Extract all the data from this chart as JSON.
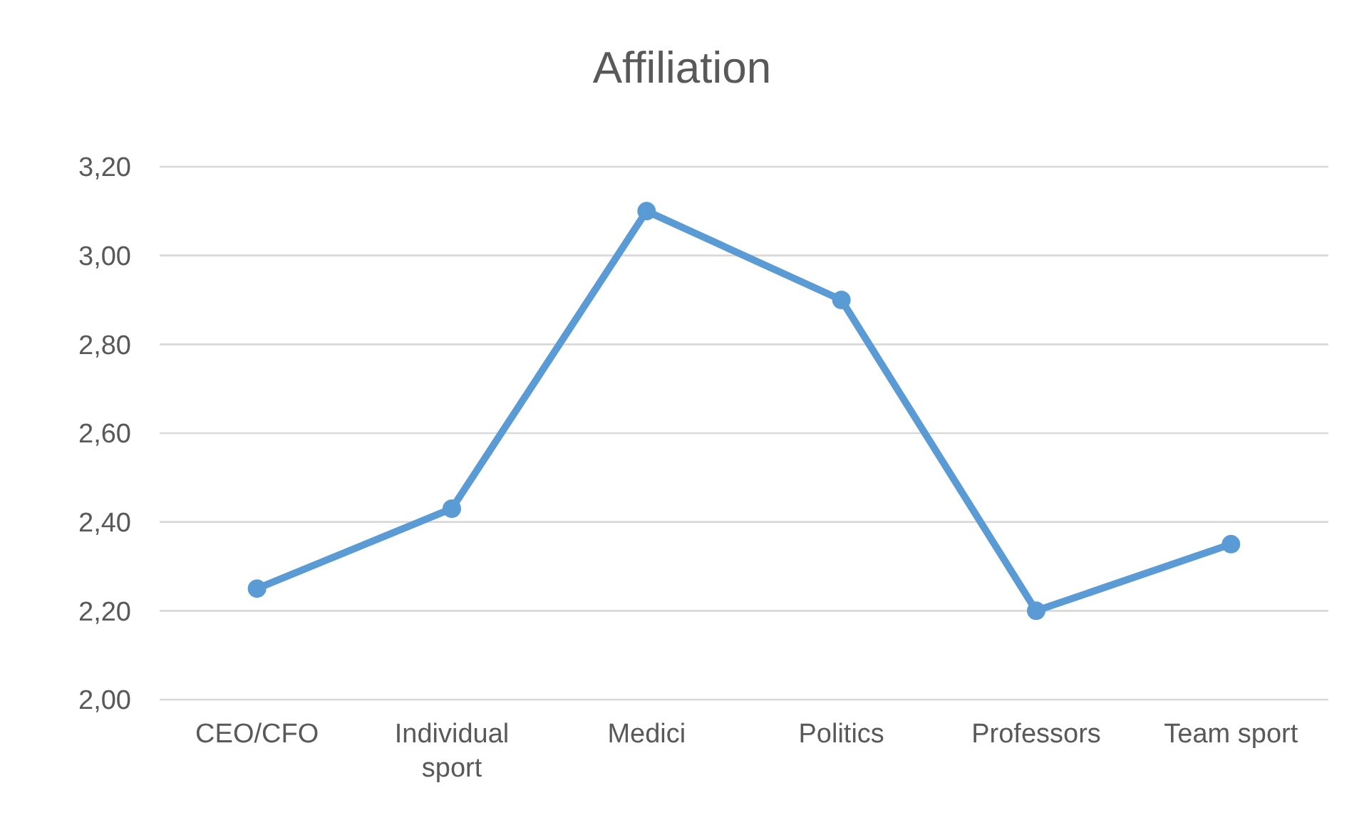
{
  "chart_data": {
    "type": "line",
    "title": "Affiliation",
    "categories": [
      "CEO/CFO",
      "Individual sport",
      "Medici",
      "Politics",
      "Professors",
      "Team sport"
    ],
    "series": [
      {
        "color": "#5b9bd5",
        "values": [
          2.25,
          2.43,
          3.1,
          2.9,
          2.2,
          2.35
        ]
      }
    ],
    "ylim": [
      2.0,
      3.2
    ],
    "yticks": [
      {
        "value": 2.0,
        "label": "2,00"
      },
      {
        "value": 2.2,
        "label": "2,20"
      },
      {
        "value": 2.4,
        "label": "2,40"
      },
      {
        "value": 2.6,
        "label": "2,60"
      },
      {
        "value": 2.8,
        "label": "2,80"
      },
      {
        "value": 3.0,
        "label": "3,00"
      },
      {
        "value": 3.2,
        "label": "3,20"
      }
    ],
    "grid": "y",
    "marker": "circle",
    "line_style": "solid",
    "legend": false
  }
}
